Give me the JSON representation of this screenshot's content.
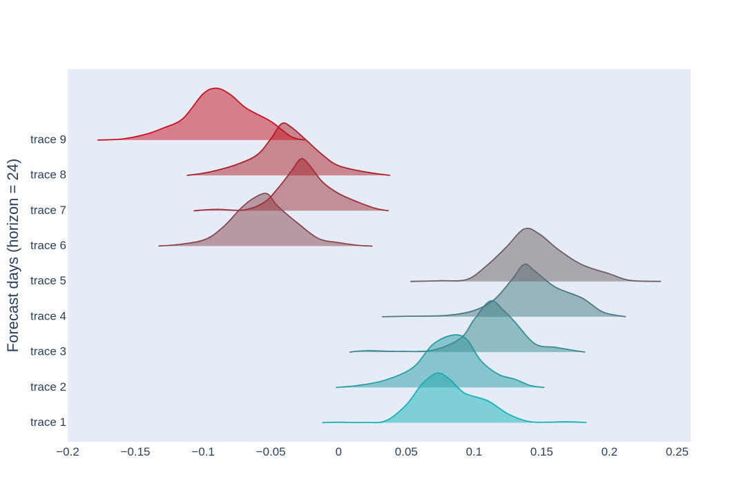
{
  "chart_data": {
    "type": "area",
    "subtype": "ridgeline-violin",
    "title": "",
    "xlabel": "",
    "ylabel": "Forecast days (horizon = 24)",
    "xlim": [
      -0.2,
      0.26
    ],
    "x_ticks": [
      -0.2,
      -0.15,
      -0.1,
      -0.05,
      0,
      0.05,
      0.1,
      0.15,
      0.2,
      0.25
    ],
    "x_tick_labels": [
      "−0.2",
      "−0.15",
      "−0.1",
      "−0.05",
      "0",
      "0.05",
      "0.1",
      "0.15",
      "0.2",
      "0.25"
    ],
    "categories": [
      "trace 1",
      "trace 2",
      "trace 3",
      "trace 4",
      "trace 5",
      "trace 6",
      "trace 7",
      "trace 8",
      "trace 9"
    ],
    "grid": false,
    "legend": "none",
    "series": [
      {
        "name": "trace 1",
        "color": "#17b2b9",
        "points": [
          [
            -0.012,
            0.003
          ],
          [
            0.0,
            0.008
          ],
          [
            0.02,
            0.005
          ],
          [
            0.035,
            0.03
          ],
          [
            0.05,
            0.26
          ],
          [
            0.062,
            0.57
          ],
          [
            0.073,
            0.72
          ],
          [
            0.082,
            0.63
          ],
          [
            0.093,
            0.43
          ],
          [
            0.11,
            0.32
          ],
          [
            0.125,
            0.13
          ],
          [
            0.14,
            0.02
          ],
          [
            0.155,
            0.008
          ],
          [
            0.165,
            0.015
          ],
          [
            0.175,
            0.012
          ],
          [
            0.183,
            0.004
          ]
        ]
      },
      {
        "name": "trace 2",
        "color": "#279ea3",
        "points": [
          [
            -0.002,
            0.0
          ],
          [
            0.015,
            0.03
          ],
          [
            0.035,
            0.11
          ],
          [
            0.055,
            0.29
          ],
          [
            0.07,
            0.63
          ],
          [
            0.085,
            0.76
          ],
          [
            0.095,
            0.69
          ],
          [
            0.105,
            0.39
          ],
          [
            0.118,
            0.19
          ],
          [
            0.13,
            0.12
          ],
          [
            0.142,
            0.025
          ],
          [
            0.152,
            0.0
          ]
        ]
      },
      {
        "name": "trace 3",
        "color": "#3a8a8f",
        "points": [
          [
            0.008,
            0.0
          ],
          [
            0.02,
            0.02
          ],
          [
            0.045,
            0.01
          ],
          [
            0.07,
            0.03
          ],
          [
            0.09,
            0.2
          ],
          [
            0.1,
            0.47
          ],
          [
            0.112,
            0.74
          ],
          [
            0.122,
            0.6
          ],
          [
            0.13,
            0.44
          ],
          [
            0.145,
            0.12
          ],
          [
            0.16,
            0.07
          ],
          [
            0.172,
            0.03
          ],
          [
            0.182,
            0.0
          ]
        ]
      },
      {
        "name": "trace 4",
        "color": "#4a7a80",
        "points": [
          [
            0.032,
            0.0
          ],
          [
            0.05,
            0.008
          ],
          [
            0.08,
            0.02
          ],
          [
            0.1,
            0.09
          ],
          [
            0.115,
            0.25
          ],
          [
            0.128,
            0.54
          ],
          [
            0.137,
            0.76
          ],
          [
            0.145,
            0.66
          ],
          [
            0.16,
            0.43
          ],
          [
            0.18,
            0.27
          ],
          [
            0.195,
            0.07
          ],
          [
            0.212,
            0.0
          ]
        ]
      },
      {
        "name": "trace 5",
        "color": "#6e5f66",
        "points": [
          [
            0.053,
            0.0
          ],
          [
            0.075,
            0.01
          ],
          [
            0.095,
            0.03
          ],
          [
            0.11,
            0.24
          ],
          [
            0.124,
            0.5
          ],
          [
            0.137,
            0.76
          ],
          [
            0.148,
            0.69
          ],
          [
            0.163,
            0.45
          ],
          [
            0.18,
            0.24
          ],
          [
            0.2,
            0.11
          ],
          [
            0.215,
            0.015
          ],
          [
            0.238,
            0.0
          ]
        ]
      },
      {
        "name": "trace 6",
        "color": "#87464e",
        "points": [
          [
            -0.133,
            0.0
          ],
          [
            -0.115,
            0.03
          ],
          [
            -0.098,
            0.1
          ],
          [
            -0.085,
            0.28
          ],
          [
            -0.072,
            0.55
          ],
          [
            -0.063,
            0.69
          ],
          [
            -0.053,
            0.76
          ],
          [
            -0.045,
            0.58
          ],
          [
            -0.03,
            0.33
          ],
          [
            -0.015,
            0.11
          ],
          [
            0.0,
            0.05
          ],
          [
            0.015,
            0.01
          ],
          [
            0.025,
            0.0
          ]
        ]
      },
      {
        "name": "trace 7",
        "color": "#9b3238",
        "points": [
          [
            -0.107,
            0.0
          ],
          [
            -0.09,
            0.02
          ],
          [
            -0.07,
            0.01
          ],
          [
            -0.055,
            0.12
          ],
          [
            -0.045,
            0.32
          ],
          [
            -0.035,
            0.57
          ],
          [
            -0.028,
            0.75
          ],
          [
            -0.022,
            0.67
          ],
          [
            -0.012,
            0.42
          ],
          [
            0.0,
            0.25
          ],
          [
            0.015,
            0.12
          ],
          [
            0.028,
            0.03
          ],
          [
            0.037,
            0.0
          ]
        ]
      },
      {
        "name": "trace 8",
        "color": "#ac202a",
        "points": [
          [
            -0.112,
            0.0
          ],
          [
            -0.095,
            0.05
          ],
          [
            -0.075,
            0.16
          ],
          [
            -0.06,
            0.3
          ],
          [
            -0.05,
            0.53
          ],
          [
            -0.042,
            0.75
          ],
          [
            -0.035,
            0.7
          ],
          [
            -0.025,
            0.53
          ],
          [
            -0.012,
            0.3
          ],
          [
            0.0,
            0.14
          ],
          [
            0.02,
            0.05
          ],
          [
            0.038,
            0.0
          ]
        ]
      },
      {
        "name": "trace 9",
        "color": "#c8101f",
        "points": [
          [
            -0.178,
            0.0
          ],
          [
            -0.16,
            0.015
          ],
          [
            -0.143,
            0.08
          ],
          [
            -0.13,
            0.17
          ],
          [
            -0.115,
            0.31
          ],
          [
            -0.1,
            0.67
          ],
          [
            -0.09,
            0.75
          ],
          [
            -0.08,
            0.66
          ],
          [
            -0.068,
            0.46
          ],
          [
            -0.05,
            0.27
          ],
          [
            -0.035,
            0.05
          ],
          [
            -0.025,
            0.0
          ]
        ]
      }
    ]
  }
}
